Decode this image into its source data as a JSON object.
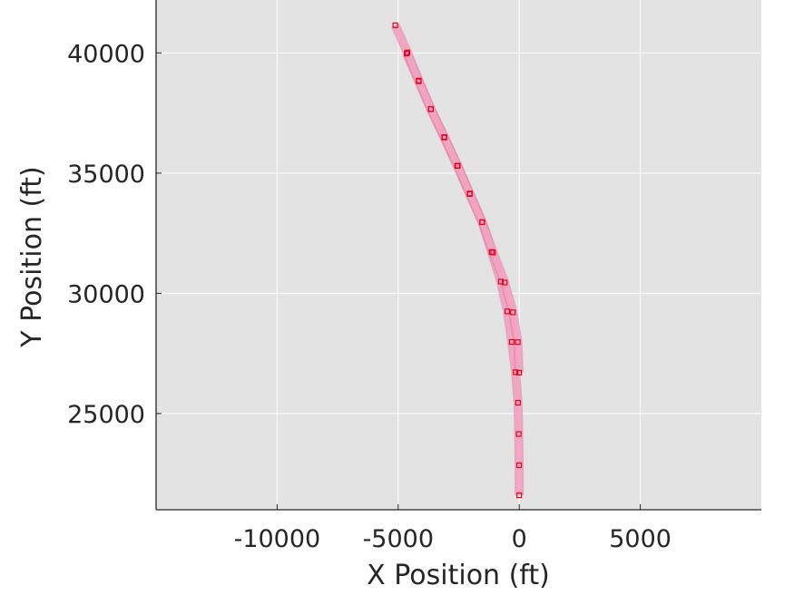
{
  "chart_data": {
    "type": "scatter",
    "xlabel": "X Position (ft)",
    "ylabel": "Y Position (ft)",
    "xlim": [
      -15000,
      10000
    ],
    "ylim": [
      21000,
      42200
    ],
    "xticks": [
      -10000,
      -5000,
      0,
      5000
    ],
    "xtick_labels": [
      "-10000",
      "-5000",
      "0",
      "5000"
    ],
    "yticks": [
      25000,
      30000,
      35000,
      40000
    ],
    "ytick_labels": [
      "25000",
      "30000",
      "35000",
      "40000"
    ],
    "grid": true,
    "colors": {
      "plot_background": "#e3e3e3",
      "grid": "#ffffff",
      "band_fill": "#f2a6c2",
      "band_edge": "#e8759d",
      "marker": "#e8001c"
    },
    "series": [
      {
        "marker": "square",
        "x": [
          0,
          -5,
          -20,
          -50,
          -150,
          -310,
          -490,
          -760,
          -1140,
          -1530,
          -2050,
          -2560,
          -3100,
          -3650,
          -4150,
          -4650
        ],
        "y": [
          21600,
          22850,
          24150,
          25450,
          26720,
          27980,
          29250,
          30490,
          31720,
          32960,
          34130,
          35300,
          36480,
          37660,
          38820,
          39970
        ]
      },
      {
        "marker": "square",
        "x": [
          -5,
          -60,
          -260,
          -600,
          -1080,
          -1530,
          -2040,
          -2540,
          -3090,
          -3650,
          -4150,
          -4620,
          -5120
        ],
        "y": [
          26700,
          27970,
          29210,
          30450,
          31700,
          32960,
          34150,
          35310,
          36500,
          37660,
          38850,
          40020,
          41150
        ]
      }
    ]
  }
}
